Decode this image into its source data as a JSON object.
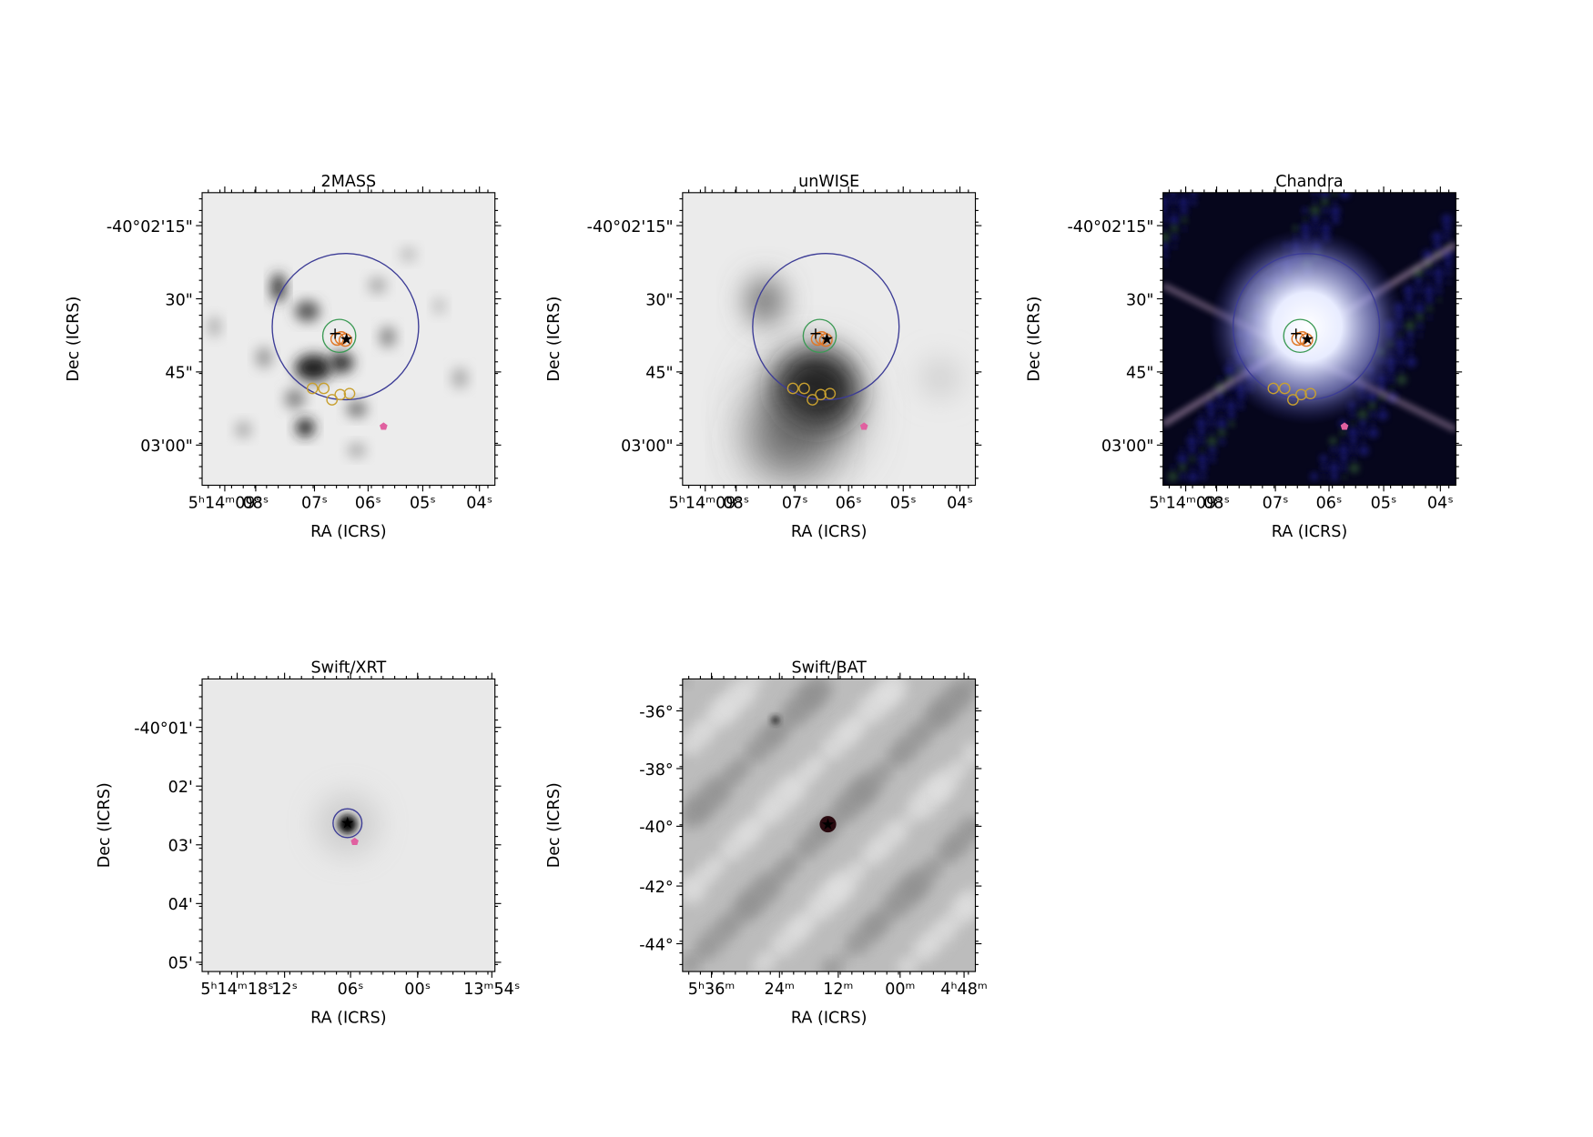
{
  "panels": [
    {
      "title": "2MASS",
      "x_label": "RA (ICRS)",
      "y_label": "Dec (ICRS)",
      "x_ticks": [
        "5ʰ14ᵐ09ˢ",
        "08ˢ",
        "07ˢ",
        "06ˢ",
        "05ˢ",
        "04ˢ"
      ],
      "y_ticks": [
        "-40°02'15\"",
        "30\"",
        "45\"",
        "03'00\""
      ]
    },
    {
      "title": "unWISE",
      "x_label": "RA (ICRS)",
      "y_label": "Dec (ICRS)",
      "x_ticks": [
        "5ʰ14ᵐ09ˢ",
        "08ˢ",
        "07ˢ",
        "06ˢ",
        "05ˢ",
        "04ˢ"
      ],
      "y_ticks": [
        "-40°02'15\"",
        "30\"",
        "45\"",
        "03'00\""
      ]
    },
    {
      "title": "Chandra",
      "x_label": "RA (ICRS)",
      "y_label": "Dec (ICRS)",
      "x_ticks": [
        "5ʰ14ᵐ09ˢ",
        "08ˢ",
        "07ˢ",
        "06ˢ",
        "05ˢ",
        "04ˢ"
      ],
      "y_ticks": [
        "-40°02'15\"",
        "30\"",
        "45\"",
        "03'00\""
      ]
    },
    {
      "title": "Swift/XRT",
      "x_label": "RA (ICRS)",
      "y_label": "Dec (ICRS)",
      "x_ticks": [
        "5ʰ14ᵐ18ˢ",
        "12ˢ",
        "06ˢ",
        "00ˢ",
        "13ᵐ54ˢ"
      ],
      "y_ticks": [
        "-40°01'",
        "02'",
        "03'",
        "04'",
        "05'"
      ]
    },
    {
      "title": "Swift/BAT",
      "x_label": "RA (ICRS)",
      "y_label": "Dec (ICRS)",
      "x_ticks": [
        "5ʰ36ᵐ",
        "24ᵐ",
        "12ᵐ",
        "00ᵐ",
        "4ʰ48ᵐ"
      ],
      "y_ticks": [
        "-36°",
        "-38°",
        "-40°",
        "-42°",
        "-44°"
      ]
    }
  ]
}
